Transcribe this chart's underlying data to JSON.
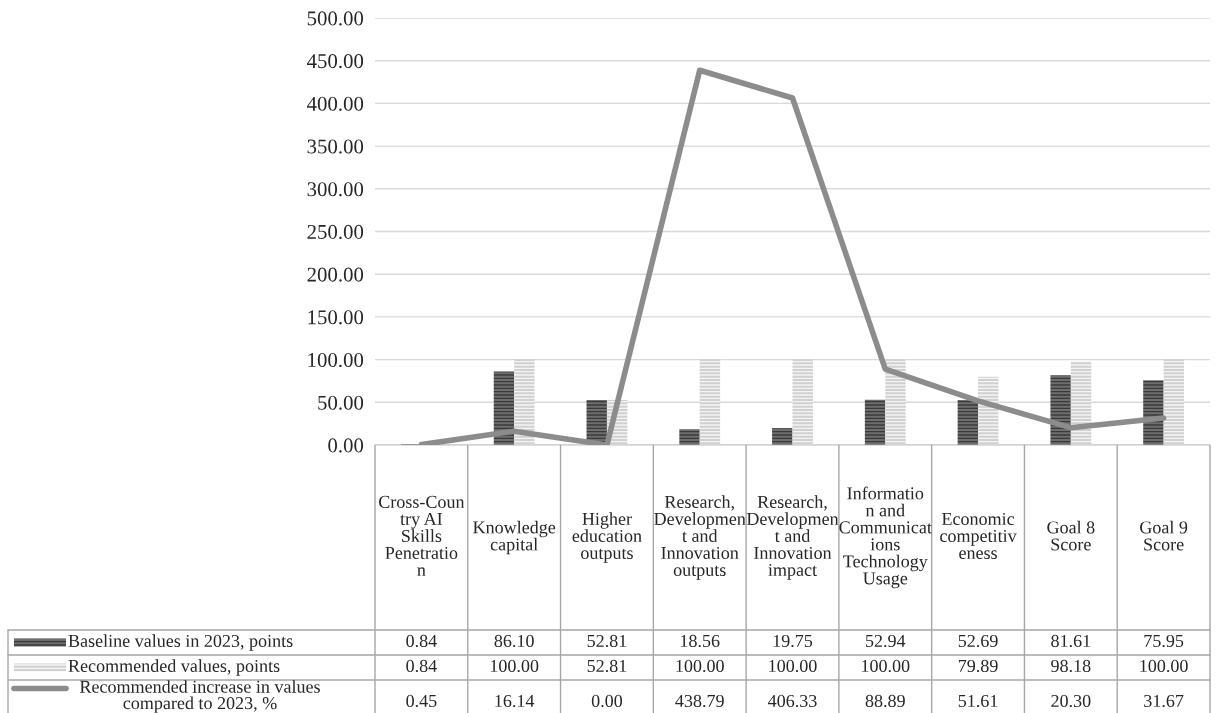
{
  "chart_data": {
    "type": "bar",
    "categories": [
      "Cross-Country AI Skills Penetration",
      "Knowledge capital",
      "Higher education outputs",
      "Research, Development and Innovation outputs",
      "Research, Development and Innovation impact",
      "Information and Communications Technology Usage",
      "Economic competitiveness",
      "Goal 8 Score",
      "Goal 9 Score"
    ],
    "series": [
      {
        "name": "Baseline values in 2023, points",
        "color": "#6e6e6e",
        "values": [
          0.84,
          86.1,
          52.81,
          18.56,
          19.75,
          52.94,
          52.69,
          81.61,
          75.95
        ],
        "value_labels": [
          "0.84",
          "86.10",
          "52.81",
          "18.56",
          "19.75",
          "52.94",
          "52.69",
          "81.61",
          "75.95"
        ]
      },
      {
        "name": "Recommended values, points",
        "color": "#d0d0d0",
        "values": [
          0.84,
          100.0,
          52.81,
          100.0,
          100.0,
          100.0,
          79.89,
          98.18,
          100.0
        ],
        "value_labels": [
          "0.84",
          "100.00",
          "52.81",
          "100.00",
          "100.00",
          "100.00",
          "79.89",
          "98.18",
          "100.00"
        ]
      },
      {
        "name": "Recommended increase in values compared to 2023, %",
        "type": "line",
        "color": "#8c8c8c",
        "values": [
          0.45,
          16.14,
          0.0,
          438.79,
          406.33,
          88.89,
          51.61,
          20.3,
          31.67
        ],
        "value_labels": [
          "0.45",
          "16.14",
          "0.00",
          "438.79",
          "406.33",
          "88.89",
          "51.61",
          "20.30",
          "31.67"
        ]
      }
    ],
    "ylim": [
      0,
      500
    ],
    "yticks": [
      {
        "value": 0,
        "label": "0.00"
      },
      {
        "value": 50,
        "label": "50.00"
      },
      {
        "value": 100,
        "label": "100.00"
      },
      {
        "value": 150,
        "label": "150.00"
      },
      {
        "value": 200,
        "label": "200.00"
      },
      {
        "value": 250,
        "label": "250.00"
      },
      {
        "value": 300,
        "label": "300.00"
      },
      {
        "value": 350,
        "label": "350.00"
      },
      {
        "value": 400,
        "label": "400.00"
      },
      {
        "value": 450,
        "label": "450.00"
      },
      {
        "value": 500,
        "label": "500.00"
      }
    ],
    "grid": "y",
    "legend": "bottom",
    "marker": "none",
    "line_style": "solid"
  }
}
